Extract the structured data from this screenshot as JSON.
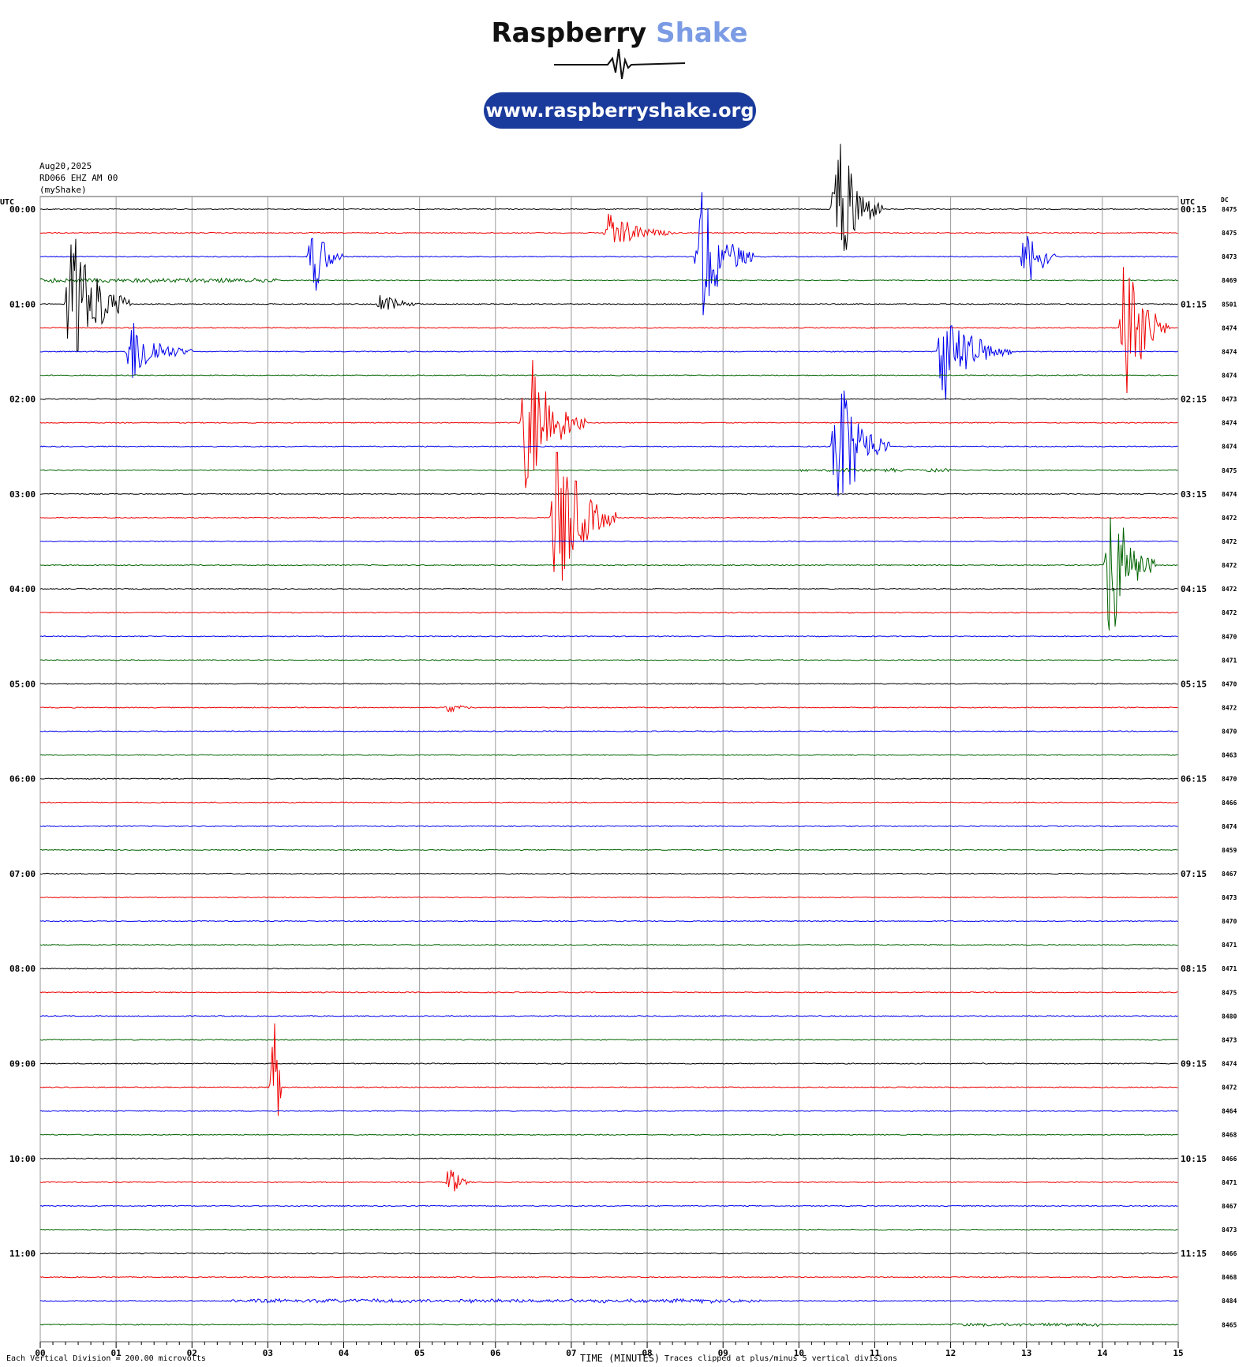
{
  "brand": {
    "name_part1": "Raspberry",
    "name_part2": "Shake",
    "url": "www.raspberryshake.org"
  },
  "header": {
    "date": "Aug20,2025",
    "station": "RD066 EHZ AM 00",
    "network": "(myShake)"
  },
  "colors": {
    "trace_cycle": [
      "#000000",
      "#ee0000",
      "#0000ee",
      "#006400"
    ],
    "grid": "#9a9a9a",
    "pill": "#1b3b9c",
    "brand_accent": "#7b9be4"
  },
  "footer": {
    "scale_note": "Each Vertical Division =  200.00 microvolts",
    "xlabel": "TIME (MINUTES)",
    "clip_note": "Traces clipped at plus/minus 5 vertical divisions"
  },
  "chart_data": {
    "type": "line",
    "title": "",
    "xlabel": "TIME (MINUTES)",
    "ylabel": "",
    "xlim": [
      0,
      15
    ],
    "x_tick_labels": [
      "00",
      "01",
      "02",
      "03",
      "04",
      "05",
      "06",
      "07",
      "08",
      "09",
      "10",
      "11",
      "12",
      "13",
      "14",
      "15"
    ],
    "left_axis_title": "UTC",
    "right_axis_title": "UTC",
    "dc_title": "DC",
    "left_time_labels": [
      "00:00",
      "01:00",
      "02:00",
      "03:00",
      "04:00",
      "05:00",
      "06:00",
      "07:00",
      "08:00",
      "09:00",
      "10:00",
      "11:00"
    ],
    "right_time_labels": [
      "00:15",
      "01:15",
      "02:15",
      "03:15",
      "04:15",
      "05:15",
      "06:15",
      "07:15",
      "08:15",
      "09:15",
      "10:15",
      "11:15"
    ],
    "dc_offsets": [
      8475,
      8475,
      8473,
      8469,
      8501,
      8474,
      8474,
      8474,
      8473,
      8474,
      8474,
      8475,
      8474,
      8472,
      8472,
      8472,
      8472,
      8472,
      8470,
      8471,
      8470,
      8472,
      8470,
      8463,
      8470,
      8466,
      8474,
      8459,
      8467,
      8473,
      8470,
      8471,
      8471,
      8475,
      8480,
      8473,
      8474,
      8472,
      8464,
      8468,
      8466,
      8471,
      8467,
      8473,
      8466,
      8468,
      8484,
      8465
    ],
    "trace_count": 48,
    "minutes_per_trace": 15,
    "grid": true,
    "events": [
      {
        "trace": 0,
        "minute": 10.5,
        "amplitude": 5,
        "duration": 0.6
      },
      {
        "trace": 1,
        "minute": 7.5,
        "amplitude": 1.2,
        "duration": 0.9
      },
      {
        "trace": 2,
        "minute": 3.6,
        "amplitude": 2.5,
        "duration": 0.4
      },
      {
        "trace": 2,
        "minute": 8.7,
        "amplitude": 4,
        "duration": 0.7
      },
      {
        "trace": 2,
        "minute": 13.0,
        "amplitude": 3,
        "duration": 0.4
      },
      {
        "trace": 3,
        "minute": 0.9,
        "amplitude": 0.8,
        "duration": 4.5
      },
      {
        "trace": 4,
        "minute": 0.4,
        "amplitude": 5,
        "duration": 0.8
      },
      {
        "trace": 4,
        "minute": 4.5,
        "amplitude": 0.7,
        "duration": 0.5
      },
      {
        "trace": 5,
        "minute": 14.3,
        "amplitude": 5,
        "duration": 0.6
      },
      {
        "trace": 6,
        "minute": 1.2,
        "amplitude": 2,
        "duration": 0.8
      },
      {
        "trace": 6,
        "minute": 11.9,
        "amplitude": 3,
        "duration": 0.9
      },
      {
        "trace": 9,
        "minute": 6.4,
        "amplitude": 5,
        "duration": 0.8
      },
      {
        "trace": 10,
        "minute": 10.5,
        "amplitude": 5,
        "duration": 0.7
      },
      {
        "trace": 11,
        "minute": 11.0,
        "amplitude": 0.6,
        "duration": 2.0
      },
      {
        "trace": 13,
        "minute": 6.8,
        "amplitude": 5,
        "duration": 0.8
      },
      {
        "trace": 15,
        "minute": 14.1,
        "amplitude": 5,
        "duration": 0.6
      },
      {
        "trace": 21,
        "minute": 5.4,
        "amplitude": 0.4,
        "duration": 0.3
      },
      {
        "trace": 37,
        "minute": 3.1,
        "amplitude": 5,
        "duration": 0.1
      },
      {
        "trace": 41,
        "minute": 5.4,
        "amplitude": 1,
        "duration": 0.3
      },
      {
        "trace": 46,
        "minute": 6.0,
        "amplitude": 0.7,
        "duration": 7.0
      },
      {
        "trace": 47,
        "minute": 13.0,
        "amplitude": 0.6,
        "duration": 2.0
      }
    ]
  }
}
